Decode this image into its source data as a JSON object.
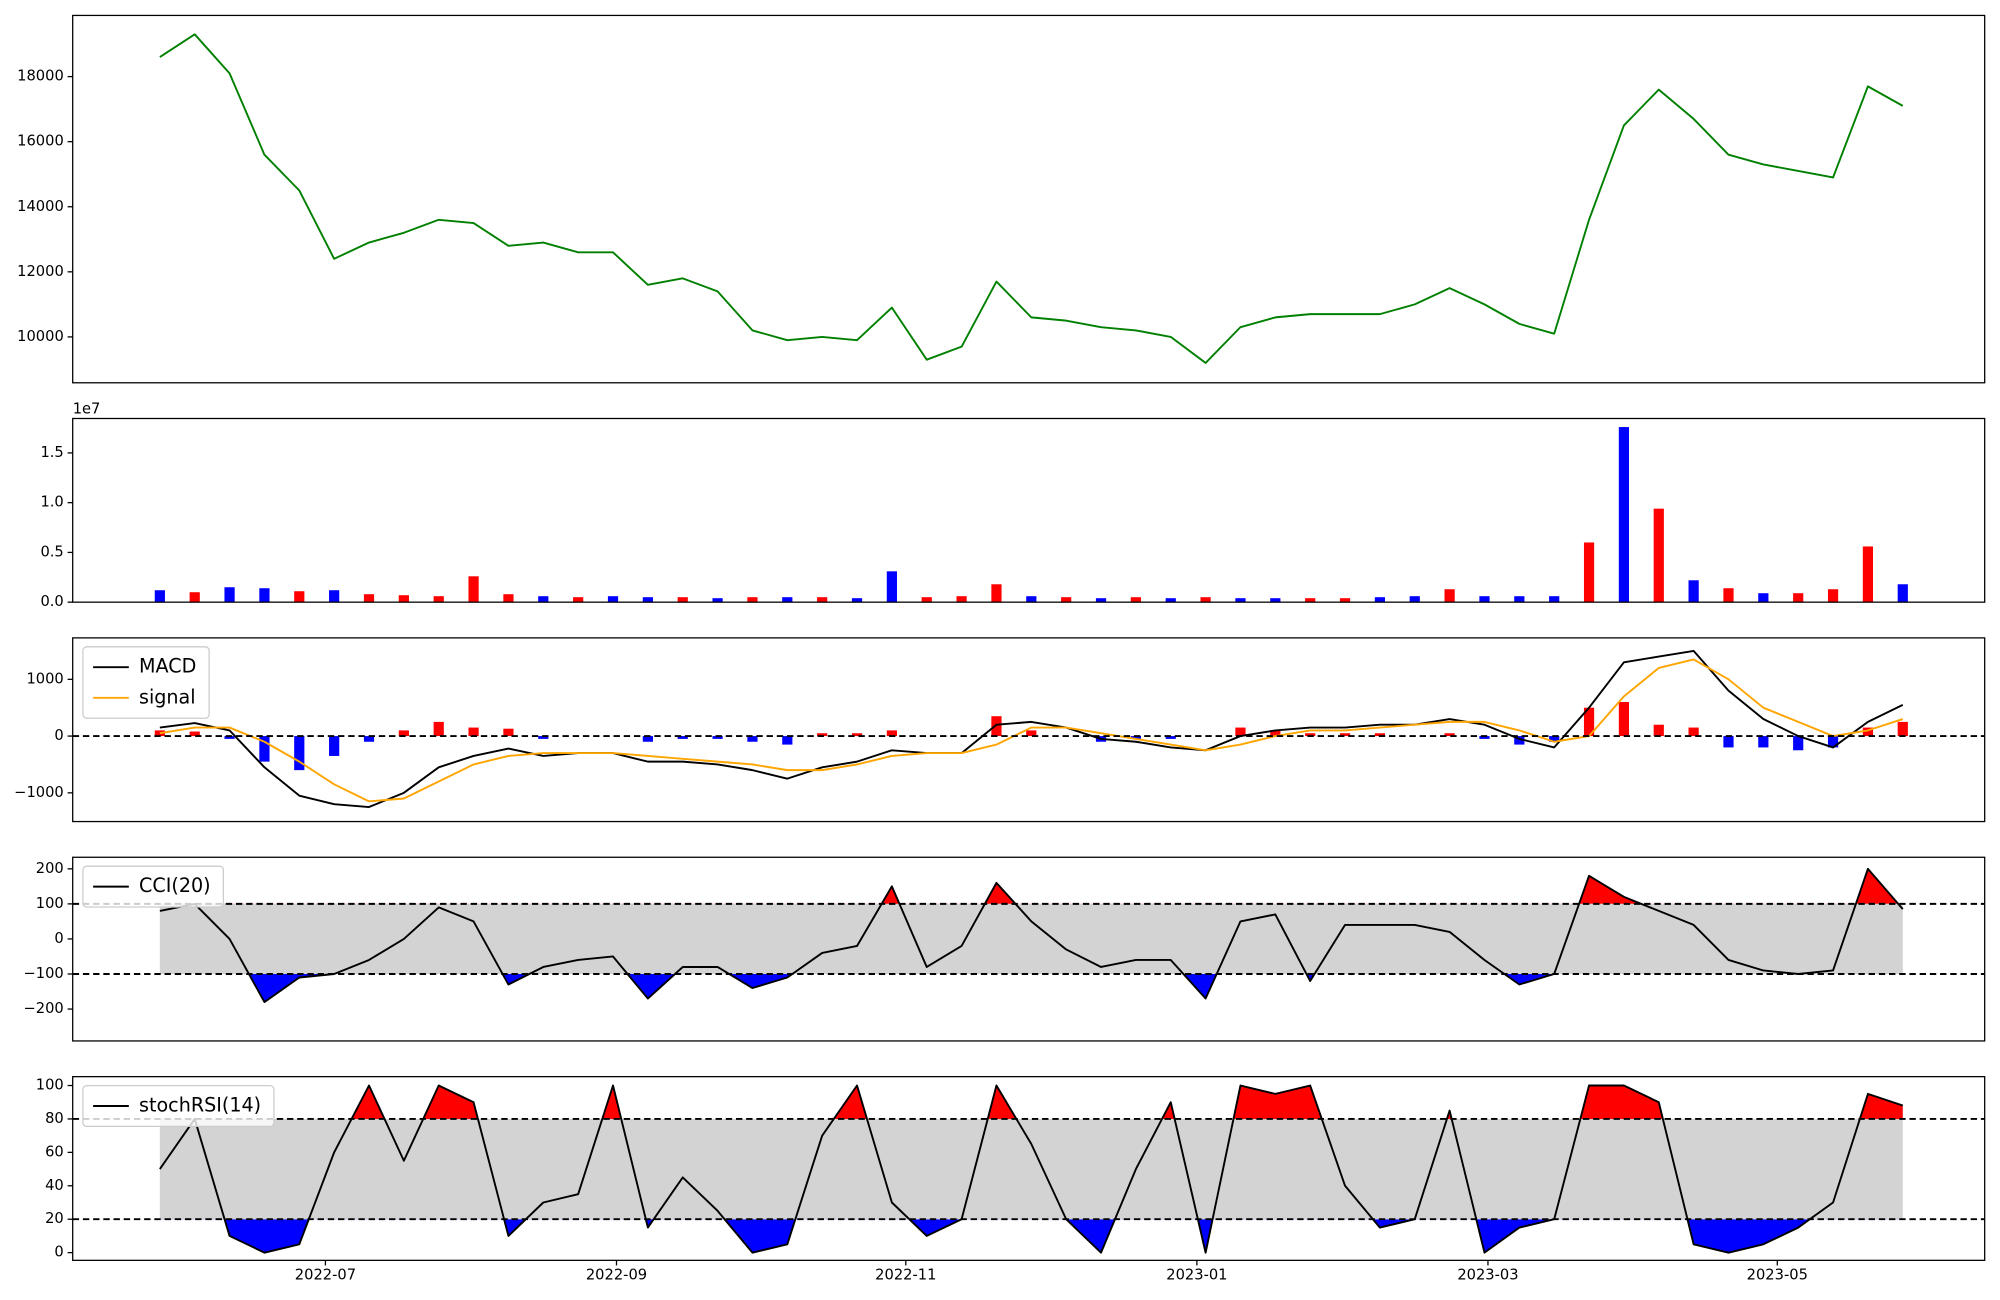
{
  "chart_data": [
    {
      "type": "line",
      "x": [
        2022.405,
        2022.425,
        2022.445,
        2022.465,
        2022.485,
        2022.505,
        2022.525,
        2022.545,
        2022.565,
        2022.585,
        2022.605,
        2022.625,
        2022.645,
        2022.665,
        2022.685,
        2022.705,
        2022.725,
        2022.745,
        2022.765,
        2022.785,
        2022.805,
        2022.825,
        2022.845,
        2022.865,
        2022.885,
        2022.905,
        2022.925,
        2022.945,
        2022.965,
        2022.985,
        2023.005,
        2023.025,
        2023.045,
        2023.065,
        2023.085,
        2023.105,
        2023.125,
        2023.145,
        2023.165,
        2023.185,
        2023.205,
        2023.225,
        2023.245,
        2023.265,
        2023.285,
        2023.305,
        2023.325,
        2023.345,
        2023.365,
        2023.385,
        2023.405
      ],
      "xlim": [
        2022.355,
        2023.452
      ],
      "values": [
        18600,
        19300,
        18100,
        15600,
        14500,
        12400,
        12900,
        13200,
        13600,
        13500,
        12800,
        12900,
        12600,
        12600,
        11600,
        11800,
        11400,
        10200,
        9900,
        10000,
        9900,
        10900,
        9300,
        9700,
        11700,
        10600,
        10500,
        10300,
        10200,
        10000,
        9200,
        10300,
        10600,
        10700,
        10700,
        10700,
        11000,
        11500,
        11000,
        10400,
        10100,
        13600,
        16500,
        17600,
        16700,
        15600,
        15300,
        15100,
        14900,
        17700,
        17100
      ],
      "color": "green",
      "ylim": [
        8590,
        19880
      ],
      "yticks": [
        10000,
        12000,
        14000,
        16000,
        18000
      ]
    },
    {
      "type": "bar",
      "x": [
        2022.405,
        2022.425,
        2022.445,
        2022.465,
        2022.485,
        2022.505,
        2022.525,
        2022.545,
        2022.565,
        2022.585,
        2022.605,
        2022.625,
        2022.645,
        2022.665,
        2022.685,
        2022.705,
        2022.725,
        2022.745,
        2022.765,
        2022.785,
        2022.805,
        2022.825,
        2022.845,
        2022.865,
        2022.885,
        2022.905,
        2022.925,
        2022.945,
        2022.965,
        2022.985,
        2023.005,
        2023.025,
        2023.045,
        2023.065,
        2023.085,
        2023.105,
        2023.125,
        2023.145,
        2023.165,
        2023.185,
        2023.205,
        2023.225,
        2023.245,
        2023.265,
        2023.285,
        2023.305,
        2023.325,
        2023.345,
        2023.365,
        2023.385,
        2023.405
      ],
      "xlim": [
        2022.355,
        2023.452
      ],
      "values": [
        1200000,
        1000000,
        1500000,
        1400000,
        1100000,
        1200000,
        800000,
        700000,
        600000,
        2600000,
        800000,
        600000,
        500000,
        600000,
        500000,
        500000,
        400000,
        500000,
        500000,
        500000,
        400000,
        3100000,
        500000,
        600000,
        1800000,
        600000,
        500000,
        400000,
        500000,
        400000,
        500000,
        400000,
        400000,
        400000,
        400000,
        500000,
        600000,
        1300000,
        600000,
        600000,
        600000,
        6000000,
        17600000,
        9400000,
        2200000,
        1400000,
        900000,
        900000,
        1300000,
        5600000,
        1800000
      ],
      "colors": [
        "blue",
        "red",
        "blue",
        "blue",
        "red",
        "blue",
        "red",
        "red",
        "red",
        "red",
        "red",
        "blue",
        "red",
        "blue",
        "blue",
        "red",
        "blue",
        "red",
        "blue",
        "red",
        "blue",
        "blue",
        "red",
        "red",
        "red",
        "blue",
        "red",
        "blue",
        "red",
        "blue",
        "red",
        "blue",
        "blue",
        "red",
        "red",
        "blue",
        "blue",
        "red",
        "blue",
        "blue",
        "blue",
        "red",
        "blue",
        "red",
        "blue",
        "red",
        "blue",
        "red",
        "red",
        "red",
        "blue"
      ],
      "ylim": [
        0,
        18460000
      ],
      "yticks": [
        {
          "value": 0,
          "label": "0.0"
        },
        {
          "value": 5000000,
          "label": "0.5"
        },
        {
          "value": 10000000,
          "label": "1.0"
        },
        {
          "value": 15000000,
          "label": "1.5"
        }
      ],
      "offset_text": "1e7"
    },
    {
      "type": "line",
      "x": [
        2022.405,
        2022.425,
        2022.445,
        2022.465,
        2022.485,
        2022.505,
        2022.525,
        2022.545,
        2022.565,
        2022.585,
        2022.605,
        2022.625,
        2022.645,
        2022.665,
        2022.685,
        2022.705,
        2022.725,
        2022.745,
        2022.765,
        2022.785,
        2022.805,
        2022.825,
        2022.845,
        2022.865,
        2022.885,
        2022.905,
        2022.925,
        2022.945,
        2022.965,
        2022.985,
        2023.005,
        2023.025,
        2023.045,
        2023.065,
        2023.085,
        2023.105,
        2023.125,
        2023.145,
        2023.165,
        2023.185,
        2023.205,
        2023.225,
        2023.245,
        2023.265,
        2023.285,
        2023.305,
        2023.325,
        2023.345,
        2023.365,
        2023.385,
        2023.405
      ],
      "xlim": [
        2022.355,
        2023.452
      ],
      "series": [
        {
          "name": "MACD",
          "color": "black",
          "values": [
            150,
            230,
            100,
            -550,
            -1050,
            -1200,
            -1250,
            -1000,
            -550,
            -350,
            -220,
            -350,
            -300,
            -300,
            -450,
            -450,
            -500,
            -600,
            -750,
            -550,
            -450,
            -250,
            -300,
            -300,
            200,
            250,
            150,
            -50,
            -100,
            -200,
            -250,
            0,
            100,
            150,
            150,
            200,
            200,
            300,
            200,
            -50,
            -200,
            500,
            1300,
            1400,
            1500,
            800,
            300,
            0,
            -200,
            250,
            550
          ]
        },
        {
          "name": "signal",
          "color": "orange",
          "values": [
            50,
            150,
            150,
            -100,
            -450,
            -850,
            -1150,
            -1100,
            -800,
            -500,
            -350,
            -300,
            -300,
            -300,
            -350,
            -400,
            -450,
            -500,
            -600,
            -600,
            -500,
            -350,
            -300,
            -300,
            -150,
            150,
            150,
            50,
            -50,
            -150,
            -250,
            -150,
            0,
            100,
            100,
            150,
            200,
            250,
            250,
            100,
            -100,
            0,
            700,
            1200,
            1350,
            1000,
            500,
            250,
            0,
            100,
            300
          ]
        }
      ],
      "histogram": {
        "values": [
          100,
          80,
          -50,
          -450,
          -600,
          -350,
          -100,
          100,
          250,
          150,
          130,
          -50,
          0,
          0,
          -100,
          -50,
          -50,
          -100,
          -150,
          50,
          50,
          100,
          0,
          0,
          350,
          100,
          0,
          -100,
          -50,
          -50,
          0,
          150,
          100,
          50,
          50,
          50,
          0,
          50,
          -50,
          -150,
          -100,
          500,
          600,
          200,
          150,
          -200,
          -200,
          -250,
          -200,
          150,
          250
        ],
        "positive_color": "red",
        "negative_color": "blue"
      },
      "reference_lines": [
        0
      ],
      "ylim": [
        -1506,
        1730
      ],
      "yticks": [
        {
          "value": -1000,
          "label": "−1000"
        },
        0,
        1000
      ],
      "legend": "upper left"
    },
    {
      "type": "line",
      "x": [
        2022.405,
        2022.425,
        2022.445,
        2022.465,
        2022.485,
        2022.505,
        2022.525,
        2022.545,
        2022.565,
        2022.585,
        2022.605,
        2022.625,
        2022.645,
        2022.665,
        2022.685,
        2022.705,
        2022.725,
        2022.745,
        2022.765,
        2022.785,
        2022.805,
        2022.825,
        2022.845,
        2022.865,
        2022.885,
        2022.905,
        2022.925,
        2022.945,
        2022.965,
        2022.985,
        2023.005,
        2023.025,
        2023.045,
        2023.065,
        2023.085,
        2023.105,
        2023.125,
        2023.145,
        2023.165,
        2023.185,
        2023.205,
        2023.225,
        2023.245,
        2023.265,
        2023.285,
        2023.305,
        2023.325,
        2023.345,
        2023.365,
        2023.385,
        2023.405
      ],
      "xlim": [
        2022.355,
        2023.452
      ],
      "series": [
        {
          "name": "CCI(20)",
          "color": "black",
          "values": [
            80,
            100,
            0,
            -180,
            -110,
            -100,
            -60,
            0,
            90,
            50,
            -130,
            -80,
            -60,
            -50,
            -170,
            -80,
            -80,
            -140,
            -110,
            -40,
            -20,
            150,
            -80,
            -20,
            160,
            50,
            -30,
            -80,
            -60,
            -60,
            -170,
            50,
            70,
            -120,
            40,
            40,
            40,
            20,
            -60,
            -130,
            -100,
            180,
            120,
            80,
            40,
            -60,
            -90,
            -100,
            -90,
            200,
            85
          ]
        }
      ],
      "thresholds": [
        100,
        -100
      ],
      "band_color": "#d3d3d3",
      "upper_color": "red",
      "lower_color": "blue",
      "ylim": [
        -291,
        233
      ],
      "yticks": [
        {
          "value": -200,
          "label": "−200"
        },
        {
          "value": -100,
          "label": "−100"
        },
        0,
        100,
        200
      ],
      "legend": "upper left"
    },
    {
      "type": "line",
      "x": [
        2022.405,
        2022.425,
        2022.445,
        2022.465,
        2022.485,
        2022.505,
        2022.525,
        2022.545,
        2022.565,
        2022.585,
        2022.605,
        2022.625,
        2022.645,
        2022.665,
        2022.685,
        2022.705,
        2022.725,
        2022.745,
        2022.765,
        2022.785,
        2022.805,
        2022.825,
        2022.845,
        2022.865,
        2022.885,
        2022.905,
        2022.925,
        2022.945,
        2022.965,
        2022.985,
        2023.005,
        2023.025,
        2023.045,
        2023.065,
        2023.085,
        2023.105,
        2023.125,
        2023.145,
        2023.165,
        2023.185,
        2023.205,
        2023.225,
        2023.245,
        2023.265,
        2023.285,
        2023.305,
        2023.325,
        2023.345,
        2023.365,
        2023.385,
        2023.405
      ],
      "xlim": [
        2022.355,
        2023.452
      ],
      "xticks": [
        {
          "value": 2022.5,
          "label": "2022-07"
        },
        {
          "value": 2022.667,
          "label": "2022-09"
        },
        {
          "value": 2022.833,
          "label": "2022-11"
        },
        {
          "value": 2023.0,
          "label": "2023-01"
        },
        {
          "value": 2023.167,
          "label": "2023-03"
        },
        {
          "value": 2023.333,
          "label": "2023-05"
        }
      ],
      "series": [
        {
          "name": "stochRSI(14)",
          "color": "black",
          "values": [
            50,
            80,
            10,
            0,
            5,
            60,
            100,
            55,
            100,
            90,
            10,
            30,
            35,
            100,
            15,
            45,
            25,
            0,
            5,
            70,
            100,
            30,
            10,
            20,
            100,
            65,
            20,
            0,
            50,
            90,
            0,
            100,
            95,
            100,
            40,
            15,
            20,
            85,
            0,
            15,
            20,
            100,
            100,
            90,
            5,
            0,
            5,
            15,
            30,
            95,
            88
          ]
        }
      ],
      "thresholds": [
        80,
        20
      ],
      "band_color": "#d3d3d3",
      "upper_color": "red",
      "lower_color": "blue",
      "ylim": [
        -4.6,
        105.3
      ],
      "yticks": [
        0,
        20,
        40,
        60,
        80,
        100
      ],
      "legend": "upper left"
    }
  ]
}
